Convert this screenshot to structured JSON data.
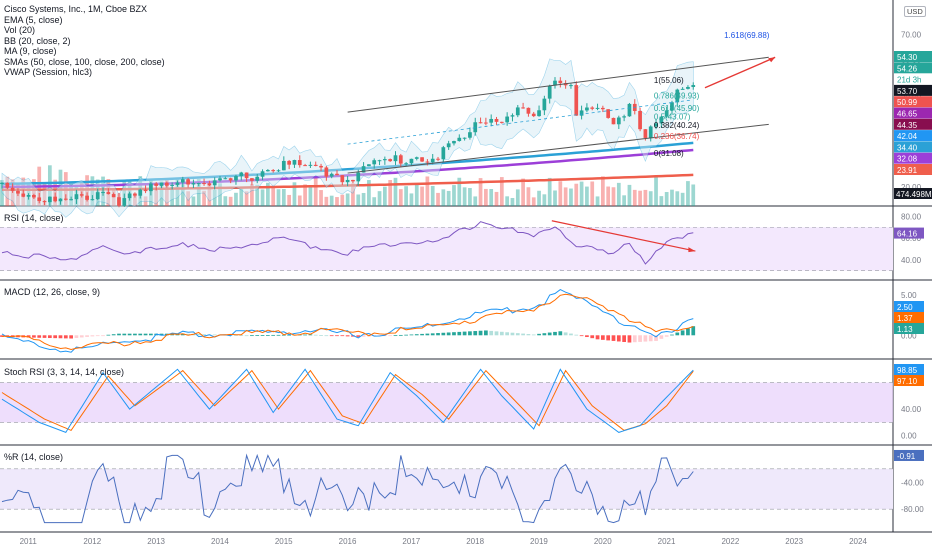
{
  "legend": [
    "Cisco Systems, Inc., 1M, Cboe BZX",
    "EMA (5, close)",
    "Vol (20)",
    "BB (20, close, 2)",
    "MA (9, close)",
    "SMAs (50, close, 100, close, 200, close)",
    "VWAP (Session, hlc3)"
  ],
  "currency_label": "USD",
  "panes": {
    "rsi_title": "RSI (14, close)",
    "macd_title": "MACD (12, 26, close, 9)",
    "stoch_title": "Stoch RSI (3, 3, 14, 14, close)",
    "wr_title": "%R (14, close)"
  },
  "colors": {
    "up": "#26a69a",
    "down": "#ef5350",
    "rsi": "#7e57c2",
    "band_fill": "#f3e8fd",
    "macd": "#2196f3",
    "signal": "#ff6d00",
    "stoch_k": "#2196f3",
    "stoch_d": "#ff6d00",
    "wr": "#4a6fbf",
    "wr_fill": "#efe9fb",
    "stoch_fill": "#e7d0fb",
    "sma50": "#2ba1d6",
    "sma100": "#9c3fd8",
    "sma200": "#ef5e4c",
    "fib_text": "#26a69a",
    "trend": "#555555",
    "arrow": "#e53935"
  },
  "chart_data": [
    {
      "name": "price",
      "type": "candlestick",
      "y_axis_ticks": [
        20,
        30,
        40,
        50,
        60,
        70
      ],
      "x_axis_ticks": [
        "2011",
        "2012",
        "2013",
        "2014",
        "2015",
        "2016",
        "2017",
        "2018",
        "2019",
        "2020",
        "2021",
        "2022",
        "2023",
        "2024"
      ],
      "time_range": [
        "2010-08",
        "2024-07"
      ],
      "price_range": [
        15,
        80
      ],
      "key_points": [
        {
          "date": "2010-08",
          "close": 22.0
        },
        {
          "date": "2011-03",
          "close": 17.5
        },
        {
          "date": "2011-08",
          "close": 15.5
        },
        {
          "date": "2012-03",
          "close": 20.0
        },
        {
          "date": "2012-07",
          "close": 16.0
        },
        {
          "date": "2013-01",
          "close": 21.0
        },
        {
          "date": "2013-06",
          "close": 24.5
        },
        {
          "date": "2013-11",
          "close": 21.0
        },
        {
          "date": "2014-06",
          "close": 24.5
        },
        {
          "date": "2015-01",
          "close": 28.5
        },
        {
          "date": "2015-09",
          "close": 26.0
        },
        {
          "date": "2016-01",
          "close": 24.0
        },
        {
          "date": "2016-06",
          "close": 28.5
        },
        {
          "date": "2016-12",
          "close": 30.5
        },
        {
          "date": "2017-06",
          "close": 31.5
        },
        {
          "date": "2017-12",
          "close": 38.0
        },
        {
          "date": "2018-02",
          "close": 44.0
        },
        {
          "date": "2018-06",
          "close": 43.0
        },
        {
          "date": "2018-09",
          "close": 47.5
        },
        {
          "date": "2018-12",
          "close": 43.0
        },
        {
          "date": "2019-04",
          "close": 55.5
        },
        {
          "date": "2019-07",
          "close": 55.0
        },
        {
          "date": "2019-08",
          "close": 46.5
        },
        {
          "date": "2019-12",
          "close": 48.0
        },
        {
          "date": "2020-03",
          "close": 39.5
        },
        {
          "date": "2020-06",
          "close": 46.5
        },
        {
          "date": "2020-09",
          "close": 39.0
        },
        {
          "date": "2020-12",
          "close": 44.7
        },
        {
          "date": "2021-03",
          "close": 51.7
        },
        {
          "date": "2021-06",
          "close": 54.3
        }
      ],
      "last_close": 54.3,
      "price_labels": [
        "54.30",
        "54.26",
        "21d 3h",
        "53.70",
        "50.99",
        "46.65",
        "44.35",
        "42.04",
        "34.40",
        "32.08",
        "23.91"
      ],
      "volume_label": "474.498M",
      "fib_levels": [
        {
          "ratio": "1.618",
          "price": 69.88,
          "label": "1.618(69.88)"
        },
        {
          "ratio": "1",
          "price": 55.06,
          "label": "1(55.06)"
        },
        {
          "ratio": "0.786",
          "price": 49.93,
          "label": "0.786(49.93)"
        },
        {
          "ratio": "0.618",
          "price": 45.9,
          "label": "0.618(45.90)"
        },
        {
          "ratio": "0.5",
          "price": 43.07,
          "label": "0.5(43.07)"
        },
        {
          "ratio": "0.382",
          "price": 40.24,
          "label": "0.382(40.24)"
        },
        {
          "ratio": "0.236",
          "price": 36.74,
          "label": "0.236(36.74)"
        },
        {
          "ratio": "0",
          "price": 31.08,
          "label": "0(31.08)"
        }
      ],
      "indicators_last": {
        "sma50": 34.4,
        "sma100": 32.08,
        "sma200": 23.91
      }
    },
    {
      "name": "rsi",
      "type": "line",
      "y_axis_ticks": [
        40,
        60,
        80
      ],
      "bands": [
        30,
        70
      ],
      "last": 64.16,
      "last_label": "64.16",
      "key_points": [
        {
          "date": "2010-08",
          "value": 50
        },
        {
          "date": "2011-08",
          "value": 40
        },
        {
          "date": "2012-03",
          "value": 55
        },
        {
          "date": "2012-07",
          "value": 44
        },
        {
          "date": "2013-06",
          "value": 58
        },
        {
          "date": "2013-11",
          "value": 48
        },
        {
          "date": "2014-06",
          "value": 56
        },
        {
          "date": "2015-01",
          "value": 60
        },
        {
          "date": "2015-09",
          "value": 52
        },
        {
          "date": "2016-01",
          "value": 47
        },
        {
          "date": "2016-12",
          "value": 60
        },
        {
          "date": "2017-06",
          "value": 57
        },
        {
          "date": "2017-12",
          "value": 72
        },
        {
          "date": "2018-02",
          "value": 77
        },
        {
          "date": "2018-12",
          "value": 62
        },
        {
          "date": "2019-04",
          "value": 74
        },
        {
          "date": "2019-08",
          "value": 55
        },
        {
          "date": "2020-03",
          "value": 45
        },
        {
          "date": "2020-06",
          "value": 58
        },
        {
          "date": "2020-09",
          "value": 40
        },
        {
          "date": "2020-12",
          "value": 55
        },
        {
          "date": "2021-06",
          "value": 64.16
        }
      ]
    },
    {
      "name": "macd",
      "type": "line+histogram",
      "y_axis_ticks": [
        0.0,
        2.5,
        5.0
      ],
      "y_tick_labels": [
        "0.00",
        "2.50",
        "5.00"
      ],
      "labels": [
        "2.50",
        "1.37",
        "1.13"
      ],
      "key_points": [
        {
          "date": "2010-08",
          "macd": 0.1,
          "signal": 0.3
        },
        {
          "date": "2011-09",
          "macd": -1.6,
          "signal": -1.2
        },
        {
          "date": "2012-06",
          "macd": -0.4,
          "signal": -0.6
        },
        {
          "date": "2013-06",
          "macd": 0.4,
          "signal": 0.2
        },
        {
          "date": "2014-06",
          "macd": 0.5,
          "signal": 0.5
        },
        {
          "date": "2015-06",
          "macd": 0.9,
          "signal": 0.8
        },
        {
          "date": "2016-03",
          "macd": 0.4,
          "signal": 0.6
        },
        {
          "date": "2017-01",
          "macd": 1.0,
          "signal": 0.9
        },
        {
          "date": "2018-03",
          "macd": 3.0,
          "signal": 2.4
        },
        {
          "date": "2018-12",
          "macd": 3.6,
          "signal": 3.5
        },
        {
          "date": "2019-05",
          "macd": 5.3,
          "signal": 4.8
        },
        {
          "date": "2019-12",
          "macd": 3.7,
          "signal": 4.2
        },
        {
          "date": "2020-06",
          "macd": 1.4,
          "signal": 2.3
        },
        {
          "date": "2020-11",
          "macd": -0.1,
          "signal": 0.6
        },
        {
          "date": "2021-06",
          "macd": 2.5,
          "signal": 1.37
        }
      ]
    },
    {
      "name": "stoch_rsi",
      "type": "line",
      "y_axis_ticks": [
        0,
        40,
        80
      ],
      "y_tick_labels": [
        "0.00",
        "40.00",
        "80.00"
      ],
      "bands": [
        20,
        80
      ],
      "labels": [
        "98.85",
        "97.10"
      ],
      "k_key_points": [
        {
          "date": "2010-08",
          "value": 55
        },
        {
          "date": "2011-03",
          "value": 20
        },
        {
          "date": "2011-08",
          "value": 5
        },
        {
          "date": "2012-03",
          "value": 95
        },
        {
          "date": "2012-08",
          "value": 40
        },
        {
          "date": "2013-05",
          "value": 100
        },
        {
          "date": "2013-11",
          "value": 40
        },
        {
          "date": "2014-06",
          "value": 100
        },
        {
          "date": "2014-11",
          "value": 35
        },
        {
          "date": "2015-05",
          "value": 100
        },
        {
          "date": "2015-11",
          "value": 25
        },
        {
          "date": "2016-03",
          "value": 15
        },
        {
          "date": "2016-09",
          "value": 95
        },
        {
          "date": "2017-02",
          "value": 60
        },
        {
          "date": "2017-07",
          "value": 20
        },
        {
          "date": "2018-02",
          "value": 100
        },
        {
          "date": "2018-06",
          "value": 60
        },
        {
          "date": "2018-12",
          "value": 10
        },
        {
          "date": "2019-05",
          "value": 100
        },
        {
          "date": "2019-10",
          "value": 40
        },
        {
          "date": "2020-04",
          "value": 5
        },
        {
          "date": "2020-08",
          "value": 15
        },
        {
          "date": "2020-12",
          "value": 50
        },
        {
          "date": "2021-06",
          "value": 98.85
        }
      ],
      "d_key_points": [
        {
          "date": "2010-08",
          "value": 65
        },
        {
          "date": "2011-04",
          "value": 25
        },
        {
          "date": "2011-09",
          "value": 8
        },
        {
          "date": "2012-04",
          "value": 90
        },
        {
          "date": "2012-09",
          "value": 45
        },
        {
          "date": "2013-06",
          "value": 98
        },
        {
          "date": "2013-12",
          "value": 45
        },
        {
          "date": "2014-07",
          "value": 98
        },
        {
          "date": "2014-12",
          "value": 40
        },
        {
          "date": "2015-06",
          "value": 98
        },
        {
          "date": "2015-12",
          "value": 30
        },
        {
          "date": "2016-04",
          "value": 18
        },
        {
          "date": "2016-10",
          "value": 92
        },
        {
          "date": "2017-03",
          "value": 62
        },
        {
          "date": "2017-08",
          "value": 25
        },
        {
          "date": "2018-03",
          "value": 98
        },
        {
          "date": "2018-07",
          "value": 65
        },
        {
          "date": "2019-01",
          "value": 15
        },
        {
          "date": "2019-06",
          "value": 98
        },
        {
          "date": "2019-11",
          "value": 45
        },
        {
          "date": "2020-05",
          "value": 8
        },
        {
          "date": "2020-09",
          "value": 18
        },
        {
          "date": "2021-01",
          "value": 45
        },
        {
          "date": "2021-06",
          "value": 97.1
        }
      ]
    },
    {
      "name": "williams_r",
      "type": "line",
      "y_axis_ticks": [
        -80,
        -40
      ],
      "y_tick_labels": [
        "-80.00",
        "-40.00"
      ],
      "bands": [
        -80,
        -20
      ],
      "last": -0.91,
      "last_label": "-0.91",
      "key_points": [
        {
          "date": "2010-08",
          "value": -40
        },
        {
          "date": "2011-01",
          "value": -75
        },
        {
          "date": "2011-06",
          "value": -95
        },
        {
          "date": "2011-11",
          "value": -85
        },
        {
          "date": "2012-03",
          "value": -15
        },
        {
          "date": "2012-07",
          "value": -60
        },
        {
          "date": "2013-01",
          "value": -30
        },
        {
          "date": "2013-05",
          "value": -5
        },
        {
          "date": "2013-10",
          "value": -50
        },
        {
          "date": "2014-03",
          "value": -20
        },
        {
          "date": "2014-08",
          "value": -10
        },
        {
          "date": "2015-02",
          "value": -5
        },
        {
          "date": "2015-08",
          "value": -50
        },
        {
          "date": "2016-01",
          "value": -70
        },
        {
          "date": "2016-06",
          "value": -10
        },
        {
          "date": "2016-12",
          "value": -20
        },
        {
          "date": "2017-05",
          "value": -35
        },
        {
          "date": "2017-12",
          "value": -5
        },
        {
          "date": "2018-05",
          "value": -30
        },
        {
          "date": "2018-12",
          "value": -75
        },
        {
          "date": "2019-04",
          "value": -5
        },
        {
          "date": "2019-08",
          "value": -60
        },
        {
          "date": "2020-02",
          "value": -40
        },
        {
          "date": "2020-03",
          "value": -90
        },
        {
          "date": "2020-06",
          "value": -20
        },
        {
          "date": "2020-09",
          "value": -75
        },
        {
          "date": "2020-12",
          "value": -10
        },
        {
          "date": "2021-06",
          "value": -0.91
        }
      ]
    }
  ]
}
